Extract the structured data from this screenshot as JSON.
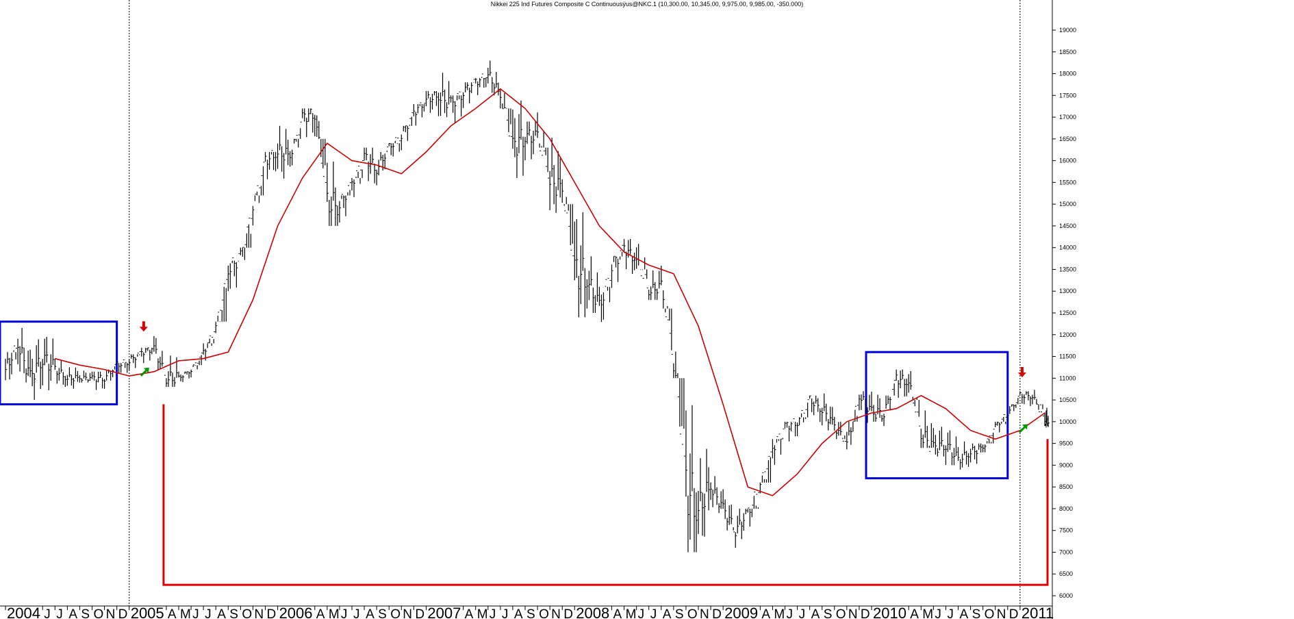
{
  "chart_data": {
    "type": "line",
    "title": "Nikkei 225 Ind Futures Composite C Continuousÿus@NKC.1 (10,300.00, 10,345.00, 9,975.00, 9,985.00, -350.000)",
    "xlabel": "",
    "ylabel": "",
    "ylim": [
      6000,
      19000
    ],
    "y_ticks": [
      6000,
      6500,
      7000,
      7500,
      8000,
      8500,
      9000,
      9500,
      10000,
      10500,
      11000,
      11500,
      12000,
      12500,
      13000,
      13500,
      14000,
      14500,
      15000,
      15500,
      16000,
      16500,
      17000,
      17500,
      18000,
      18500,
      19000
    ],
    "x_range": [
      "2004-03",
      "2011-03"
    ],
    "x_tick_labels": [
      {
        "label": "2004",
        "date": "2004-03",
        "kind": "year"
      },
      {
        "label": "J",
        "date": "2004-06",
        "kind": "month"
      },
      {
        "label": "J",
        "date": "2004-07",
        "kind": "month"
      },
      {
        "label": "A",
        "date": "2004-08",
        "kind": "month"
      },
      {
        "label": "S",
        "date": "2004-09",
        "kind": "month"
      },
      {
        "label": "O",
        "date": "2004-10",
        "kind": "month"
      },
      {
        "label": "N",
        "date": "2004-11",
        "kind": "month"
      },
      {
        "label": "D",
        "date": "2004-12",
        "kind": "month"
      },
      {
        "label": "2005",
        "date": "2005-01",
        "kind": "year"
      },
      {
        "label": "A",
        "date": "2005-04",
        "kind": "month"
      },
      {
        "label": "M",
        "date": "2005-05",
        "kind": "month"
      },
      {
        "label": "J",
        "date": "2005-06",
        "kind": "month"
      },
      {
        "label": "J",
        "date": "2005-07",
        "kind": "month"
      },
      {
        "label": "A",
        "date": "2005-08",
        "kind": "month"
      },
      {
        "label": "S",
        "date": "2005-09",
        "kind": "month"
      },
      {
        "label": "O",
        "date": "2005-10",
        "kind": "month"
      },
      {
        "label": "N",
        "date": "2005-11",
        "kind": "month"
      },
      {
        "label": "D",
        "date": "2005-12",
        "kind": "month"
      },
      {
        "label": "2006",
        "date": "2006-01",
        "kind": "year"
      },
      {
        "label": "A",
        "date": "2006-04",
        "kind": "month"
      },
      {
        "label": "M",
        "date": "2006-05",
        "kind": "month"
      },
      {
        "label": "J",
        "date": "2006-06",
        "kind": "month"
      },
      {
        "label": "J",
        "date": "2006-07",
        "kind": "month"
      },
      {
        "label": "A",
        "date": "2006-08",
        "kind": "month"
      },
      {
        "label": "S",
        "date": "2006-09",
        "kind": "month"
      },
      {
        "label": "O",
        "date": "2006-10",
        "kind": "month"
      },
      {
        "label": "N",
        "date": "2006-11",
        "kind": "month"
      },
      {
        "label": "D",
        "date": "2006-12",
        "kind": "month"
      },
      {
        "label": "2007",
        "date": "2007-01",
        "kind": "year"
      },
      {
        "label": "A",
        "date": "2007-04",
        "kind": "month"
      },
      {
        "label": "M",
        "date": "2007-05",
        "kind": "month"
      },
      {
        "label": "J",
        "date": "2007-06",
        "kind": "month"
      },
      {
        "label": "J",
        "date": "2007-07",
        "kind": "month"
      },
      {
        "label": "A",
        "date": "2007-08",
        "kind": "month"
      },
      {
        "label": "S",
        "date": "2007-09",
        "kind": "month"
      },
      {
        "label": "O",
        "date": "2007-10",
        "kind": "month"
      },
      {
        "label": "N",
        "date": "2007-11",
        "kind": "month"
      },
      {
        "label": "D",
        "date": "2007-12",
        "kind": "month"
      },
      {
        "label": "2008",
        "date": "2008-01",
        "kind": "year"
      },
      {
        "label": "A",
        "date": "2008-04",
        "kind": "month"
      },
      {
        "label": "M",
        "date": "2008-05",
        "kind": "month"
      },
      {
        "label": "J",
        "date": "2008-06",
        "kind": "month"
      },
      {
        "label": "J",
        "date": "2008-07",
        "kind": "month"
      },
      {
        "label": "A",
        "date": "2008-08",
        "kind": "month"
      },
      {
        "label": "S",
        "date": "2008-09",
        "kind": "month"
      },
      {
        "label": "O",
        "date": "2008-10",
        "kind": "month"
      },
      {
        "label": "N",
        "date": "2008-11",
        "kind": "month"
      },
      {
        "label": "D",
        "date": "2008-12",
        "kind": "month"
      },
      {
        "label": "2009",
        "date": "2009-01",
        "kind": "year"
      },
      {
        "label": "A",
        "date": "2009-04",
        "kind": "month"
      },
      {
        "label": "M",
        "date": "2009-05",
        "kind": "month"
      },
      {
        "label": "J",
        "date": "2009-06",
        "kind": "month"
      },
      {
        "label": "J",
        "date": "2009-07",
        "kind": "month"
      },
      {
        "label": "A",
        "date": "2009-08",
        "kind": "month"
      },
      {
        "label": "S",
        "date": "2009-09",
        "kind": "month"
      },
      {
        "label": "O",
        "date": "2009-10",
        "kind": "month"
      },
      {
        "label": "N",
        "date": "2009-11",
        "kind": "month"
      },
      {
        "label": "D",
        "date": "2009-12",
        "kind": "month"
      },
      {
        "label": "2010",
        "date": "2010-01",
        "kind": "year"
      },
      {
        "label": "A",
        "date": "2010-04",
        "kind": "month"
      },
      {
        "label": "M",
        "date": "2010-05",
        "kind": "month"
      },
      {
        "label": "J",
        "date": "2010-06",
        "kind": "month"
      },
      {
        "label": "J",
        "date": "2010-07",
        "kind": "month"
      },
      {
        "label": "A",
        "date": "2010-08",
        "kind": "month"
      },
      {
        "label": "S",
        "date": "2010-09",
        "kind": "month"
      },
      {
        "label": "O",
        "date": "2010-10",
        "kind": "month"
      },
      {
        "label": "N",
        "date": "2010-11",
        "kind": "month"
      },
      {
        "label": "D",
        "date": "2010-12",
        "kind": "month"
      },
      {
        "label": "2011",
        "date": "2011-01",
        "kind": "year"
      }
    ],
    "year_dividers": [
      "2005-01",
      "2011-01"
    ],
    "series": [
      {
        "kind": "price_bars",
        "color": "#000000",
        "x": [
          "2004-03",
          "2004-04",
          "2004-05",
          "2004-06",
          "2004-07",
          "2004-08",
          "2004-09",
          "2004-10",
          "2004-11",
          "2004-12",
          "2005-01",
          "2005-02",
          "2005-03",
          "2005-04",
          "2005-05",
          "2005-06",
          "2005-07",
          "2005-08",
          "2005-09",
          "2005-10",
          "2005-11",
          "2005-12",
          "2006-01",
          "2006-02",
          "2006-03",
          "2006-04",
          "2006-05",
          "2006-06",
          "2006-07",
          "2006-08",
          "2006-09",
          "2006-10",
          "2006-11",
          "2006-12",
          "2007-01",
          "2007-02",
          "2007-03",
          "2007-04",
          "2007-05",
          "2007-06",
          "2007-07",
          "2007-08",
          "2007-09",
          "2007-10",
          "2007-11",
          "2007-12",
          "2008-01",
          "2008-02",
          "2008-03",
          "2008-04",
          "2008-05",
          "2008-06",
          "2008-07",
          "2008-08",
          "2008-09",
          "2008-10",
          "2008-11",
          "2008-12",
          "2009-01",
          "2009-02",
          "2009-03",
          "2009-04",
          "2009-05",
          "2009-06",
          "2009-07",
          "2009-08",
          "2009-09",
          "2009-10",
          "2009-11",
          "2009-12",
          "2010-01",
          "2010-02",
          "2010-03",
          "2010-04",
          "2010-05",
          "2010-06",
          "2010-07",
          "2010-08",
          "2010-09",
          "2010-10",
          "2010-11",
          "2010-12",
          "2011-01",
          "2011-02",
          "2011-03"
        ],
        "high": [
          11600,
          12200,
          11900,
          11950,
          11450,
          11250,
          11300,
          11150,
          11200,
          11350,
          11550,
          11700,
          12000,
          11850,
          11150,
          11300,
          11800,
          12300,
          13700,
          14000,
          15200,
          16200,
          16800,
          16500,
          17200,
          17600,
          16500,
          15200,
          15600,
          16300,
          16200,
          16400,
          16800,
          17300,
          17600,
          18200,
          17500,
          17800,
          17900,
          18300,
          18200,
          17600,
          16900,
          17600,
          16800,
          16200,
          15400,
          14000,
          13100,
          13800,
          14200,
          14600,
          13700,
          13600,
          12800,
          11400,
          9500,
          8800,
          8500,
          8000,
          8000,
          8600,
          9600,
          10000,
          10100,
          10600,
          10700,
          10300,
          10000,
          10700,
          11000,
          10600,
          11200,
          11450,
          10800,
          10200,
          10000,
          9600,
          9500,
          9500,
          10000,
          10400,
          10700,
          10900,
          10700
        ],
        "low": [
          10500,
          10900,
          10500,
          10600,
          10800,
          10700,
          10900,
          10600,
          10700,
          10800,
          11000,
          11150,
          11200,
          10800,
          10800,
          10900,
          11200,
          11500,
          12400,
          13000,
          14200,
          15200,
          15500,
          15700,
          16200,
          16500,
          14500,
          14100,
          14700,
          15300,
          15400,
          15700,
          16000,
          16600,
          16800,
          17000,
          16400,
          17000,
          17200,
          17500,
          17200,
          15600,
          15700,
          16300,
          14800,
          15000,
          12400,
          12500,
          11700,
          12600,
          13300,
          13500,
          12800,
          12600,
          11000,
          7000,
          7300,
          7900,
          7500,
          7100,
          7000,
          7900,
          8600,
          9200,
          9400,
          9900,
          9800,
          9600,
          9100,
          9900,
          10000,
          9900,
          10300,
          10500,
          9400,
          9200,
          9000,
          8900,
          8800,
          9100,
          9500,
          10000,
          10200,
          10400,
          9900
        ],
        "close": [
          11200,
          11800,
          11000,
          11500,
          11200,
          11000,
          11000,
          11000,
          11000,
          11300,
          11400,
          11600,
          11700,
          11000,
          11000,
          11200,
          11600,
          12200,
          13500,
          13800,
          15000,
          16000,
          16200,
          16100,
          17000,
          17100,
          15000,
          15000,
          15500,
          16100,
          15800,
          16300,
          16600,
          17100,
          17400,
          17500,
          17300,
          17600,
          17800,
          18000,
          17500,
          16300,
          16600,
          16500,
          15600,
          15300,
          13500,
          13300,
          12600,
          13600,
          14000,
          13700,
          13000,
          13100,
          11400,
          8500,
          8000,
          8500,
          8000,
          7500,
          7900,
          8600,
          9400,
          9900,
          10000,
          10500,
          10300,
          9900,
          9500,
          10600,
          10200,
          10200,
          11000,
          10900,
          9700,
          9400,
          9500,
          9100,
          9300,
          9400,
          9900,
          10200,
          10600,
          10600,
          9985
        ]
      },
      {
        "kind": "moving_average",
        "color": "#cc0000",
        "x": [
          "2004-07",
          "2004-09",
          "2004-11",
          "2005-01",
          "2005-03",
          "2005-05",
          "2005-07",
          "2005-09",
          "2005-11",
          "2006-01",
          "2006-03",
          "2006-05",
          "2006-07",
          "2006-09",
          "2006-11",
          "2007-01",
          "2007-03",
          "2007-05",
          "2007-07",
          "2007-09",
          "2007-11",
          "2008-01",
          "2008-03",
          "2008-05",
          "2008-07",
          "2008-09",
          "2008-11",
          "2009-01",
          "2009-03",
          "2009-05",
          "2009-07",
          "2009-09",
          "2009-11",
          "2010-01",
          "2010-03",
          "2010-05",
          "2010-07",
          "2010-09",
          "2010-11",
          "2011-01",
          "2011-03"
        ],
        "values": [
          11450,
          11300,
          11200,
          11050,
          11150,
          11400,
          11450,
          11600,
          12800,
          14500,
          15600,
          16400,
          16000,
          15900,
          15700,
          16200,
          16800,
          17200,
          17650,
          17200,
          16500,
          15500,
          14500,
          13900,
          13600,
          13400,
          12200,
          10400,
          8500,
          8300,
          8800,
          9500,
          10000,
          10200,
          10300,
          10600,
          10300,
          9800,
          9600,
          9800,
          10200
        ]
      }
    ],
    "annotations": [
      {
        "type": "box",
        "color": "#0000dd",
        "x_from": "2004-03",
        "x_to": "2004-12",
        "y_from": 10400,
        "y_to": 12300
      },
      {
        "type": "box",
        "color": "#0000dd",
        "x_from": "2010-01",
        "x_to": "2010-12",
        "y_from": 8700,
        "y_to": 11600
      },
      {
        "type": "bracket",
        "color": "#dd0000",
        "x_from": "2005-04",
        "x_to": "2011-03",
        "y_top_left": 10400,
        "y_top_right": 9600,
        "y_bottom": 6250
      },
      {
        "type": "arrow-down",
        "color": "#dd0000",
        "x": "2005-03",
        "y": 12150
      },
      {
        "type": "arrow-up-right",
        "color": "#009900",
        "x": "2005-03",
        "y": 11150
      },
      {
        "type": "arrow-down",
        "color": "#dd0000",
        "x": "2011-02",
        "y": 11100
      },
      {
        "type": "arrow-up-right",
        "color": "#009900",
        "x": "2011-02",
        "y": 9850
      }
    ],
    "grid": false,
    "legend": "none"
  }
}
